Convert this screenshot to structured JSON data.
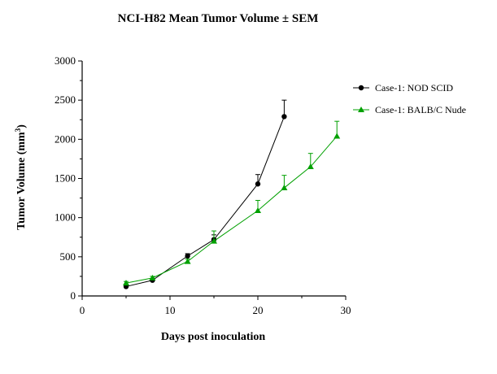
{
  "chart_data": {
    "type": "line",
    "title": "NCI-H82 Mean Tumor Volume ± SEM",
    "xlabel": "Days post inoculation",
    "ylabel": "Tumor Volume (mm",
    "ylabel_superscript": "3",
    "ylabel_suffix": ")",
    "xlim": [
      0,
      30
    ],
    "ylim": [
      0,
      3000
    ],
    "x_ticks": [
      0,
      10,
      20,
      30
    ],
    "y_ticks": [
      0,
      500,
      1000,
      1500,
      2000,
      2500,
      3000
    ],
    "grid": false,
    "legend_position": "right",
    "series": [
      {
        "name": "Case-1: NOD SCID",
        "color": "#000000",
        "marker": "circle",
        "error_bars": "up",
        "x": [
          5,
          8,
          12,
          15,
          20,
          23
        ],
        "y": [
          120,
          200,
          510,
          720,
          1430,
          2290
        ],
        "sem": [
          30,
          20,
          30,
          60,
          120,
          210
        ]
      },
      {
        "name": "Case-1: BALB/C Nude",
        "color": "#00a000",
        "marker": "triangle",
        "error_bars": "up",
        "x": [
          5,
          8,
          12,
          15,
          20,
          23,
          26,
          29
        ],
        "y": [
          165,
          230,
          440,
          700,
          1090,
          1380,
          1650,
          2040
        ],
        "sem": [
          20,
          20,
          30,
          130,
          130,
          160,
          170,
          190
        ]
      }
    ]
  }
}
